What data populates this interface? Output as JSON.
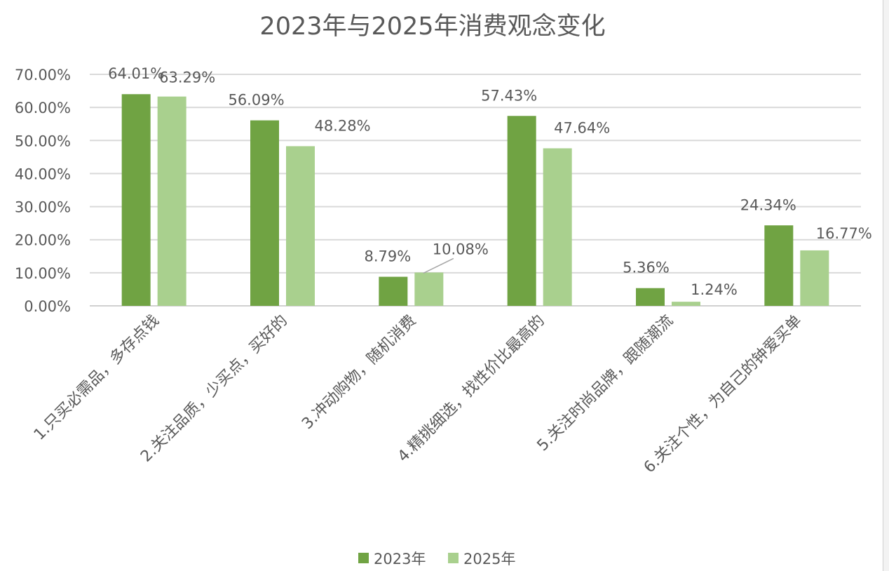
{
  "chart_data": {
    "type": "bar",
    "title": "2023年与2025年消费观念变化",
    "xlabel": "",
    "ylabel": "",
    "categories": [
      "1.只买必需品，多存点钱",
      "2.关注品质，少买点，买好的",
      "3.冲动购物，随机消费",
      "4.精挑细选，找性价比最高的",
      "5.关注时尚品牌，跟随潮流",
      "6.关注个性，为自己的钟爱买单"
    ],
    "series": [
      {
        "name": "2023年",
        "color": "#70a343",
        "values": [
          64.01,
          56.09,
          8.79,
          57.43,
          5.36,
          24.34
        ],
        "labels": [
          "64.01%",
          "56.09%",
          "8.79%",
          "57.43%",
          "5.36%",
          "24.34%"
        ]
      },
      {
        "name": "2025年",
        "color": "#a9d08e",
        "values": [
          63.29,
          48.28,
          10.08,
          47.64,
          1.24,
          16.77
        ],
        "labels": [
          "63.29%",
          "48.28%",
          "10.08%",
          "47.64%",
          "1.24%",
          "16.77%"
        ]
      }
    ],
    "ylim": [
      0,
      70
    ],
    "yticks": [
      0,
      10,
      20,
      30,
      40,
      50,
      60,
      70
    ],
    "ytick_labels": [
      "0.00%",
      "10.00%",
      "20.00%",
      "30.00%",
      "40.00%",
      "50.00%",
      "60.00%",
      "70.00%"
    ],
    "grid": true,
    "legend": "bottom"
  }
}
